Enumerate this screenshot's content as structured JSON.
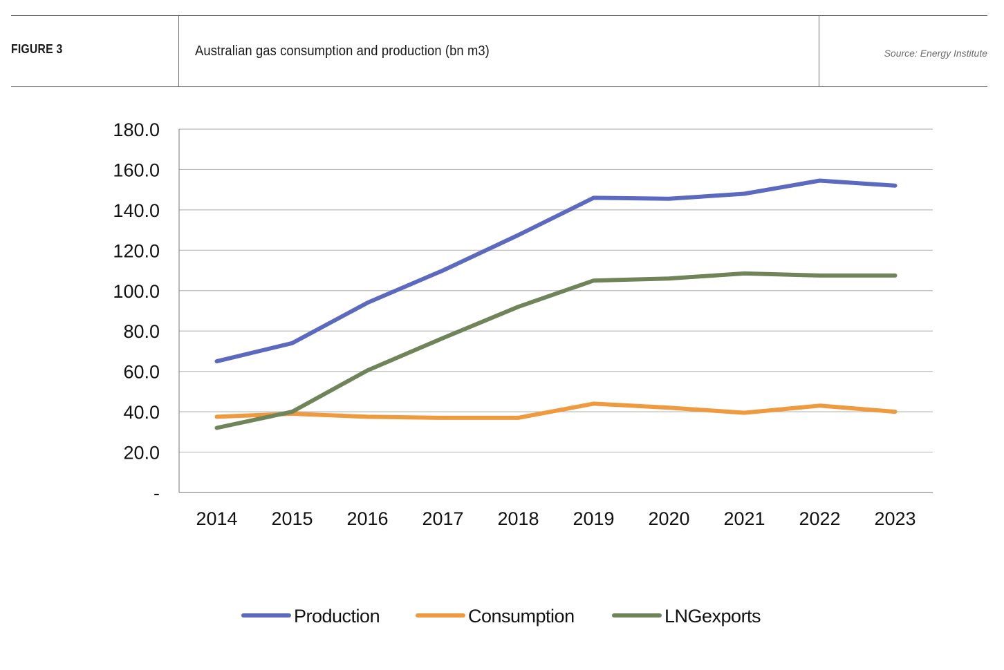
{
  "header": {
    "figure_label": "FIGURE 3",
    "title": "Australian gas consumption and production (bn m3)",
    "source": "Source: Energy Institute"
  },
  "colors": {
    "production": "#5b6abf",
    "consumption": "#ef9a3e",
    "lng_exports": "#70845a",
    "gridline": "#b8b8b8",
    "axis": "#8c8c8c"
  },
  "chart_data": {
    "type": "line",
    "title": "Australian gas consumption and production (bn m3)",
    "xlabel": "",
    "ylabel": "",
    "categories": [
      "2014",
      "2015",
      "2016",
      "2017",
      "2018",
      "2019",
      "2020",
      "2021",
      "2022",
      "2023"
    ],
    "y_ticks": [
      "-",
      "20.0",
      "40.0",
      "60.0",
      "80.0",
      "100.0",
      "120.0",
      "140.0",
      "160.0",
      "180.0"
    ],
    "ylim": [
      0,
      180
    ],
    "grid": true,
    "legend_position": "bottom",
    "series": [
      {
        "name": "Production",
        "color_key": "production",
        "values": [
          65.0,
          74.0,
          94.0,
          110.0,
          127.5,
          146.0,
          145.5,
          148.0,
          154.5,
          152.0
        ]
      },
      {
        "name": "Consumption",
        "color_key": "consumption",
        "values": [
          37.5,
          39.0,
          37.5,
          37.0,
          37.0,
          44.0,
          42.0,
          39.5,
          43.0,
          40.0
        ]
      },
      {
        "name": "LNG exports",
        "color_key": "lng_exports",
        "values": [
          32.0,
          40.0,
          60.5,
          76.5,
          92.0,
          105.0,
          106.0,
          108.5,
          107.5,
          107.5
        ]
      }
    ]
  },
  "legend": [
    {
      "label": "Production",
      "color_key": "production"
    },
    {
      "label": "Consumption",
      "color_key": "consumption"
    },
    {
      "label": "LNGexports",
      "color_key": "lng_exports"
    }
  ]
}
